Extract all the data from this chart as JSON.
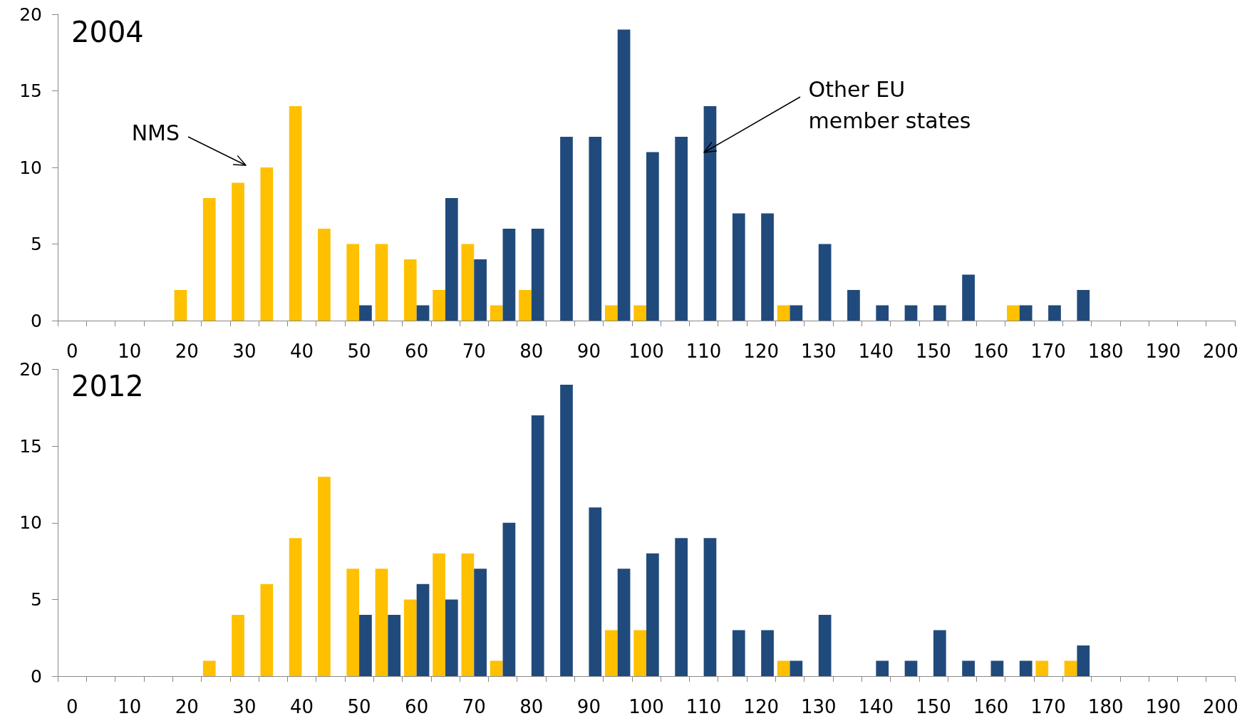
{
  "chart_data": [
    {
      "type": "bar",
      "title": "2004",
      "categories": [
        "0",
        null,
        "10",
        null,
        "20",
        null,
        "30",
        null,
        "40",
        null,
        "50",
        null,
        "60",
        null,
        "70",
        null,
        "80",
        null,
        "90",
        null,
        "100",
        null,
        "110",
        null,
        "120",
        null,
        "130",
        null,
        "140",
        null,
        "150",
        null,
        "160",
        null,
        "170",
        null,
        "180",
        null,
        "190",
        null,
        "200"
      ],
      "series": [
        {
          "color": "#ffc000",
          "values": [
            null,
            null,
            null,
            null,
            2,
            8,
            9,
            10,
            14,
            6,
            5,
            5,
            4,
            2,
            5,
            1,
            2,
            null,
            null,
            1,
            1,
            null,
            null,
            null,
            null,
            1,
            null,
            null,
            null,
            null,
            null,
            null,
            null,
            1,
            null,
            null,
            null,
            null,
            null,
            null,
            null
          ]
        },
        {
          "color": "#214a7c",
          "values": [
            null,
            null,
            null,
            null,
            null,
            null,
            null,
            null,
            null,
            null,
            1,
            null,
            1,
            8,
            4,
            6,
            6,
            12,
            12,
            19,
            11,
            12,
            14,
            7,
            7,
            1,
            5,
            2,
            1,
            1,
            1,
            3,
            null,
            1,
            1,
            2,
            null,
            null,
            null,
            null,
            null
          ]
        }
      ],
      "ylim": [
        0,
        20
      ],
      "yticks": [
        0,
        5,
        10,
        15,
        20
      ],
      "grid": false,
      "annotations": [
        "NMS",
        {
          "text": "Other EU member states",
          "x": "110",
          "y": 11
        }
      ]
    },
    {
      "type": "bar",
      "title": "2012",
      "categories": [
        "0",
        null,
        "10",
        null,
        "20",
        null,
        "30",
        null,
        "40",
        null,
        "50",
        null,
        "60",
        null,
        "70",
        null,
        "80",
        null,
        "90",
        null,
        "100",
        null,
        "110",
        null,
        "120",
        null,
        "130",
        null,
        "140",
        null,
        "150",
        null,
        "160",
        null,
        "170",
        null,
        "180",
        null,
        "190",
        null,
        "200"
      ],
      "series": [
        {
          "color": "#ffc000",
          "values": [
            null,
            null,
            null,
            null,
            null,
            1,
            4,
            6,
            9,
            13,
            7,
            7,
            5,
            8,
            8,
            1,
            null,
            null,
            null,
            3,
            3,
            null,
            null,
            null,
            null,
            1,
            null,
            null,
            null,
            null,
            null,
            null,
            null,
            null,
            1,
            1,
            null,
            null,
            null,
            null,
            null
          ]
        },
        {
          "color": "#214a7c",
          "values": [
            null,
            null,
            null,
            null,
            null,
            null,
            null,
            null,
            null,
            null,
            4,
            4,
            6,
            5,
            7,
            10,
            17,
            19,
            11,
            7,
            8,
            9,
            9,
            3,
            3,
            1,
            4,
            null,
            1,
            1,
            3,
            1,
            1,
            1,
            null,
            2,
            null,
            null,
            null,
            null,
            null
          ]
        }
      ],
      "ylim": [
        0,
        20
      ],
      "yticks": [
        0,
        5,
        10,
        15,
        20
      ],
      "grid": false
    }
  ]
}
